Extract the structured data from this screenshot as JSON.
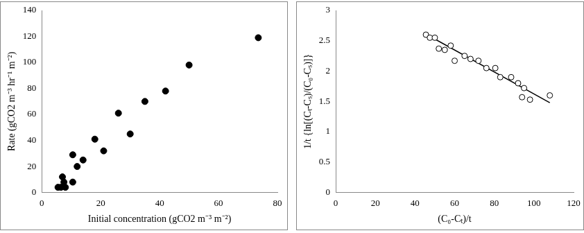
{
  "chart_data": [
    {
      "type": "scatter",
      "x_label": "Initial concentration (gCO2 m⁻³ m⁻²)",
      "y_label": "Rate (gCO2 m⁻³ hr⁻¹ m⁻²)",
      "xlim": [
        0,
        80
      ],
      "xticks": [
        0,
        20,
        40,
        60,
        80
      ],
      "ylim": [
        0,
        140
      ],
      "yticks": [
        0,
        20,
        40,
        60,
        80,
        100,
        120,
        140
      ],
      "grid": false,
      "series": [
        {
          "marker": "circle",
          "color": "#000000",
          "x": [
            5.5,
            6.5,
            7,
            7.5,
            8,
            10.5,
            10.5,
            12,
            14,
            18,
            21,
            26,
            30,
            35,
            42,
            50,
            73.5
          ],
          "values": [
            4,
            4,
            12,
            8,
            4,
            29,
            8,
            20,
            25,
            41,
            32,
            61,
            45,
            70,
            78,
            98,
            119
          ]
        }
      ]
    },
    {
      "type": "scatter",
      "x_label": "(C₀-Cₜ)/t",
      "y_label": "1/t {ln[(Cₜ-Cₛ)/(C₀-Cₛ)]}",
      "xlim": [
        0,
        120
      ],
      "xticks": [
        0,
        20,
        40,
        60,
        80,
        100,
        120
      ],
      "ylim": [
        0,
        3
      ],
      "yticks": [
        0,
        0.5,
        1,
        1.5,
        2,
        2.5,
        3
      ],
      "grid": false,
      "series": [
        {
          "marker": "circle_open",
          "color": "#000000",
          "x": [
            45.5,
            47.5,
            50,
            52,
            55,
            58,
            60,
            65,
            68,
            72,
            76,
            80.5,
            83,
            88.5,
            92,
            94,
            95,
            98,
            108
          ],
          "values": [
            2.6,
            2.55,
            2.55,
            2.37,
            2.35,
            2.42,
            2.17,
            2.25,
            2.2,
            2.17,
            2.05,
            2.05,
            1.9,
            1.9,
            1.8,
            1.57,
            1.72,
            1.53,
            1.6
          ]
        },
        {
          "type": "line",
          "color": "#000000",
          "line_style": "solid",
          "x": [
            46,
            108
          ],
          "values": [
            2.6,
            1.48
          ]
        }
      ]
    }
  ]
}
